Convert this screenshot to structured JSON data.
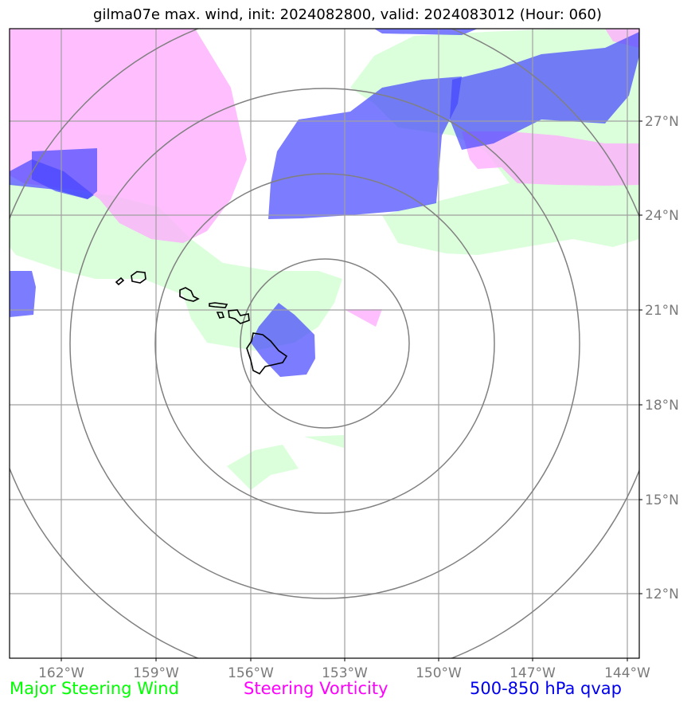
{
  "title": "gilma07e max. wind, init: 2024082800, valid: 2024083012 (Hour: 060)",
  "legend": {
    "major_steering_wind": "Major Steering Wind",
    "steering_vorticity": "Steering Vorticity",
    "qvap": "500-850 hPa qvap"
  },
  "lon_labels": [
    "162°W",
    "159°W",
    "156°W",
    "153°W",
    "150°W",
    "147°W",
    "144°W"
  ],
  "lat_labels": [
    "27°N",
    "24°N",
    "21°N",
    "18°N",
    "15°N",
    "12°N"
  ],
  "colors": {
    "wind": "#ccffcc",
    "vorticity": "#ffaaff",
    "qvap": "#4444ff"
  }
}
